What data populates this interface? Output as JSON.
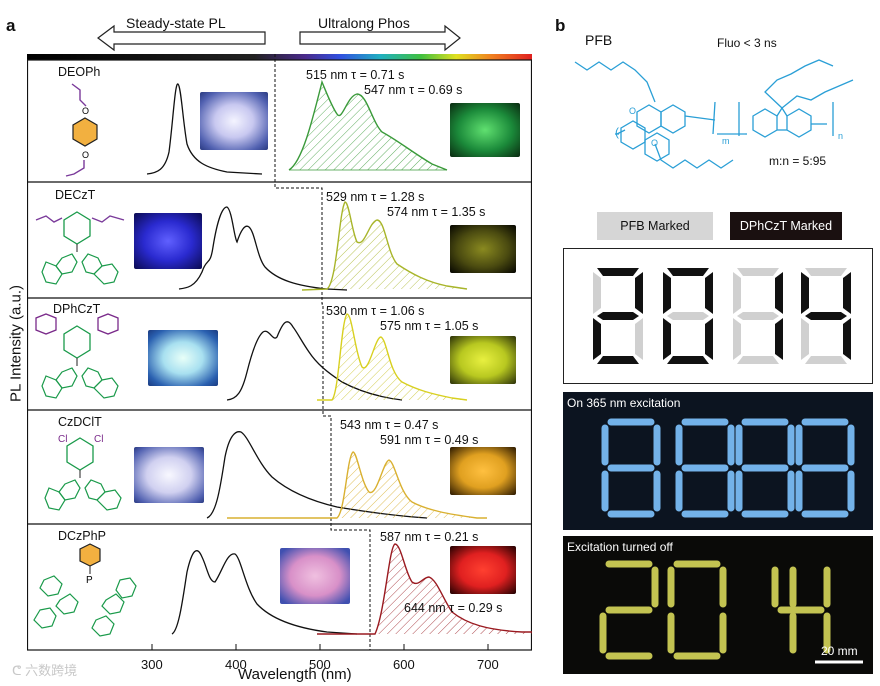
{
  "panel_a": {
    "letter": "a",
    "arrow_left": "Steady-state PL",
    "arrow_right": "Ultralong Phos",
    "y_axis_title": "PL Intensity (a.u.)",
    "x_axis_title": "Wavelength (nm)",
    "x_ticks": [
      "300",
      "400",
      "500",
      "600",
      "700"
    ],
    "compounds": [
      {
        "name": "DEOPh",
        "peak1": "515 nm τ = 0.71 s",
        "peak2": "547 nm τ = 0.69 s",
        "phos_color": "#3a9a3a",
        "photo_color": "#1b8a3a"
      },
      {
        "name": "DECzT",
        "peak1": "529 nm τ = 1.28 s",
        "peak2": "574 nm τ = 1.35 s",
        "phos_color": "#a8b52a",
        "photo_color": "#6a6a12"
      },
      {
        "name": "DPhCzT",
        "peak1": "530 nm τ = 1.06 s",
        "peak2": "575 nm τ = 1.05 s",
        "phos_color": "#d8d020",
        "photo_color": "#c8d020"
      },
      {
        "name": "CzDClT",
        "peak1": "543 nm τ = 0.47 s",
        "peak2": "591 nm τ = 0.49 s",
        "phos_color": "#d9b030",
        "photo_color": "#e0a020"
      },
      {
        "name": "DCzPhP",
        "peak1": "587 nm  τ = 0.21 s",
        "peak2": "644 nm  τ = 0.29 s",
        "phos_color": "#9a1a20",
        "photo_color": "#e02020"
      }
    ]
  },
  "panel_b": {
    "letter": "b",
    "polymer_name": "PFB",
    "fluo_note": "Fluo < 3 ns",
    "ratio": "m:n = 5:95",
    "sub_m": "m",
    "sub_n": "n",
    "legend_pfb": "PFB Marked",
    "legend_dphczt": "DPhCzT Marked",
    "photo1_caption": "On 365 nm excitation",
    "photo2_caption": "Excitation turned off",
    "scale_bar": "20 mm",
    "colors": {
      "pfb": "#d6d6d6",
      "dphczt": "#1a1010",
      "glow_blue": "#7fc4ff",
      "glow_yellow": "#d8d85a",
      "structure_blue": "#2a9fd6"
    }
  },
  "watermark": "六数跨境"
}
